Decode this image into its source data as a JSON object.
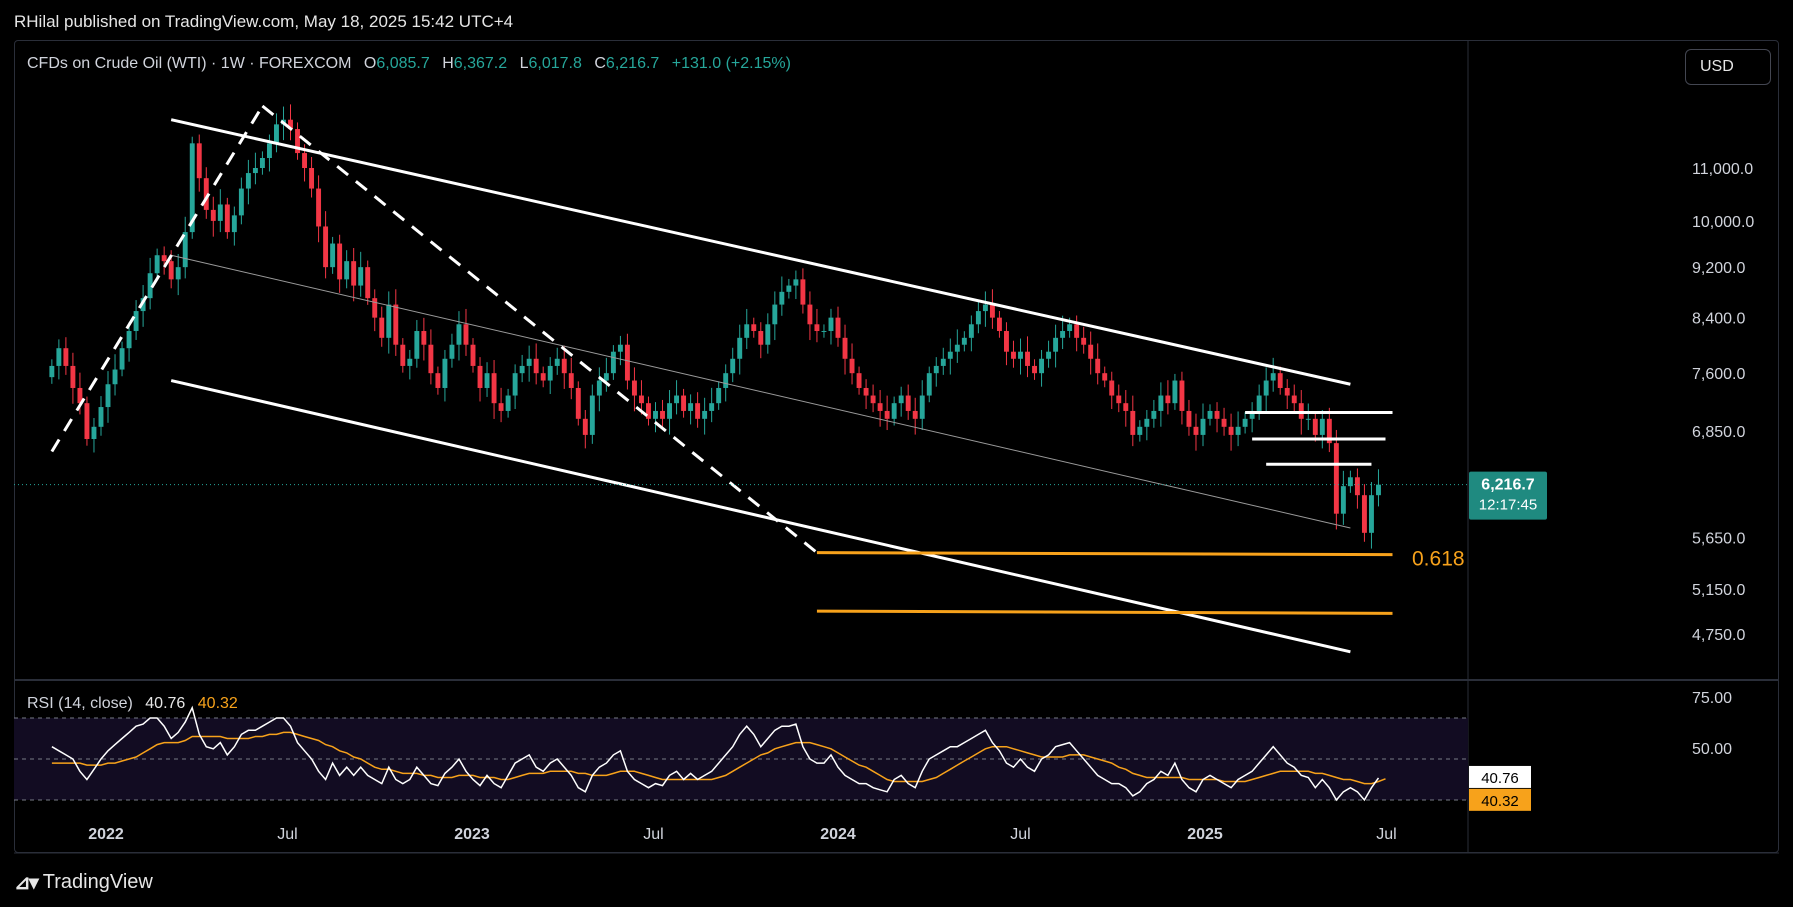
{
  "header": {
    "published": "RHilal published on TradingView.com, May 18, 2025 15:42 UTC+4"
  },
  "symbol": {
    "name": "CFDs on Crude Oil (WTI) · 1W · FOREXCOM",
    "o_label": "O",
    "o": "6,085.7",
    "h_label": "H",
    "h": "6,367.2",
    "l_label": "L",
    "l": "6,017.8",
    "c_label": "C",
    "c": "6,216.7",
    "change": "+131.0 (+2.15%)"
  },
  "currency_button": "USD",
  "price_badge": {
    "price": "6,216.7",
    "countdown": "12:17:45"
  },
  "fib_label": "0.618",
  "rsi": {
    "label": "RSI (14, close)",
    "value": "40.76",
    "ma_value": "40.32"
  },
  "brand": {
    "logo_text": "TradingView"
  },
  "colors": {
    "up": "#26a69a",
    "down": "#f23645",
    "rsi_line": "#ffffff",
    "rsi_ma": "#f7a21b",
    "fib": "#f7a21b",
    "trend": "#ffffff"
  },
  "chart_data": [
    {
      "type": "candlestick",
      "title": "CFDs on Crude Oil (WTI) · 1W · FOREXCOM",
      "y_scale": "log",
      "y_ticks": [
        "11,000.0",
        "10,000.0",
        "9,200.0",
        "8,400.0",
        "7,600.0",
        "6,850.0",
        "5,650.0",
        "5,150.0",
        "4,750.0"
      ],
      "y_tick_values": [
        11000,
        10000,
        9200,
        8400,
        7600,
        6850,
        5650,
        5150,
        4750
      ],
      "x_ticks": [
        "2022",
        "Jul",
        "2023",
        "Jul",
        "2024",
        "Jul",
        "2025",
        "Jul"
      ],
      "x_tick_dates": [
        "2022-01-01",
        "2022-07-01",
        "2023-01-01",
        "2023-07-01",
        "2024-01-01",
        "2024-07-01",
        "2025-01-01",
        "2025-07-01"
      ],
      "ylim": [
        4500,
        12500
      ],
      "start_date": "2021-11-08",
      "closes": [
        7700,
        7950,
        7700,
        7400,
        7200,
        6750,
        6900,
        7150,
        7450,
        7650,
        7950,
        8200,
        8500,
        8700,
        9100,
        9400,
        9300,
        9000,
        9200,
        9800,
        11500,
        10800,
        10200,
        10000,
        10300,
        9800,
        10100,
        10600,
        10900,
        11000,
        11200,
        11500,
        11900,
        12000,
        11800,
        11300,
        11000,
        10600,
        9900,
        9200,
        9600,
        9000,
        9300,
        8900,
        9200,
        8700,
        8400,
        8100,
        8600,
        8000,
        7700,
        7800,
        8200,
        8000,
        7600,
        7400,
        7800,
        8000,
        8300,
        8000,
        7700,
        7400,
        7600,
        7200,
        7100,
        7300,
        7600,
        7700,
        7800,
        7600,
        7500,
        7700,
        7800,
        7600,
        7400,
        7000,
        6800,
        7300,
        7500,
        7600,
        7900,
        8000,
        7500,
        7300,
        7200,
        7000,
        7100,
        7000,
        7200,
        7300,
        7100,
        7200,
        7000,
        7100,
        7200,
        7400,
        7600,
        7800,
        8100,
        8300,
        8200,
        8000,
        8300,
        8600,
        8800,
        8900,
        9000,
        8600,
        8300,
        8200,
        8200,
        8400,
        8100,
        7800,
        7600,
        7400,
        7300,
        7200,
        7100,
        7000,
        7200,
        7300,
        7100,
        7000,
        7300,
        7600,
        7700,
        7800,
        7900,
        8000,
        8100,
        8300,
        8500,
        8600,
        8400,
        8200,
        7900,
        7800,
        7900,
        7700,
        7600,
        7800,
        7900,
        8100,
        8200,
        8300,
        8100,
        8000,
        7800,
        7600,
        7500,
        7300,
        7200,
        7100,
        6800,
        6900,
        7000,
        7100,
        7300,
        7200,
        7500,
        7100,
        6900,
        6800,
        7000,
        7100,
        7000,
        6900,
        6800,
        6900,
        7000,
        7100,
        7300,
        7500,
        7600,
        7400,
        7300,
        7200,
        7000,
        7000,
        6800,
        7000,
        6700,
        5900,
        6200,
        6300,
        6100,
        5700,
        6100,
        6217
      ],
      "annotations": [
        "descending channel upper line",
        "descending channel middle line",
        "descending channel lower line",
        "dashed trend line",
        "horizontal resistance levels",
        "Fibonacci 0.618 level",
        "Fibonacci lower level"
      ],
      "last_price": 6216.7
    },
    {
      "type": "line",
      "title": "RSI (14, close)",
      "series": [
        {
          "name": "RSI",
          "values": [
            56,
            54,
            52,
            50,
            44,
            40,
            45,
            50,
            54,
            57,
            60,
            63,
            66,
            67,
            70,
            70,
            66,
            60,
            63,
            68,
            75,
            62,
            56,
            55,
            58,
            52,
            56,
            62,
            64,
            64,
            66,
            68,
            70,
            70,
            66,
            58,
            54,
            50,
            44,
            40,
            48,
            42,
            46,
            42,
            46,
            42,
            40,
            38,
            46,
            40,
            38,
            40,
            46,
            42,
            38,
            37,
            43,
            46,
            50,
            44,
            40,
            37,
            42,
            38,
            36,
            42,
            48,
            50,
            52,
            46,
            44,
            48,
            50,
            46,
            42,
            36,
            34,
            42,
            46,
            48,
            52,
            54,
            44,
            40,
            38,
            36,
            38,
            37,
            42,
            44,
            40,
            43,
            40,
            42,
            44,
            48,
            52,
            56,
            62,
            66,
            62,
            56,
            60,
            64,
            66,
            66,
            67,
            56,
            50,
            48,
            48,
            52,
            46,
            42,
            40,
            38,
            38,
            36,
            35,
            34,
            40,
            42,
            38,
            36,
            44,
            50,
            52,
            54,
            56,
            56,
            58,
            60,
            62,
            64,
            58,
            54,
            48,
            46,
            50,
            46,
            44,
            50,
            52,
            56,
            57,
            58,
            54,
            50,
            46,
            42,
            40,
            38,
            38,
            36,
            32,
            34,
            38,
            40,
            44,
            42,
            48,
            40,
            36,
            34,
            40,
            42,
            40,
            38,
            36,
            40,
            42,
            44,
            48,
            52,
            56,
            52,
            48,
            46,
            42,
            41,
            36,
            40,
            36,
            30,
            34,
            36,
            34,
            30,
            36,
            40.76
          ]
        },
        {
          "name": "MA",
          "values": [
            48,
            48,
            48,
            48,
            48,
            47,
            47,
            47,
            48,
            48,
            49,
            50,
            51,
            53,
            55,
            57,
            58,
            58,
            58,
            59,
            61,
            61,
            61,
            61,
            61,
            60,
            60,
            60,
            60,
            61,
            61,
            62,
            62,
            63,
            63,
            62,
            61,
            60,
            59,
            57,
            56,
            54,
            53,
            51,
            50,
            48,
            46,
            45,
            45,
            44,
            43,
            43,
            43,
            42,
            42,
            41,
            41,
            41,
            42,
            42,
            42,
            41,
            41,
            41,
            40,
            40,
            41,
            42,
            43,
            43,
            43,
            44,
            44,
            44,
            44,
            43,
            43,
            42,
            42,
            42,
            43,
            44,
            44,
            44,
            43,
            42,
            41,
            40,
            40,
            40,
            40,
            40,
            40,
            40,
            40,
            41,
            42,
            44,
            46,
            48,
            50,
            52,
            53,
            55,
            56,
            57,
            58,
            58,
            58,
            57,
            56,
            55,
            53,
            51,
            49,
            47,
            46,
            44,
            42,
            40,
            39,
            39,
            39,
            39,
            39,
            40,
            41,
            43,
            45,
            47,
            49,
            51,
            53,
            55,
            56,
            56,
            56,
            55,
            54,
            53,
            52,
            51,
            51,
            51,
            51,
            52,
            52,
            52,
            51,
            50,
            49,
            48,
            46,
            45,
            43,
            42,
            41,
            41,
            41,
            41,
            41,
            41,
            40,
            40,
            40,
            40,
            40,
            39,
            39,
            39,
            39,
            40,
            41,
            42,
            43,
            44,
            44,
            44,
            44,
            44,
            43,
            43,
            42,
            41,
            40,
            40,
            39,
            38,
            38,
            39,
            40.32
          ]
        }
      ],
      "y_ticks": [
        "75.00",
        "50.00"
      ],
      "ylim": [
        20,
        80
      ]
    }
  ]
}
